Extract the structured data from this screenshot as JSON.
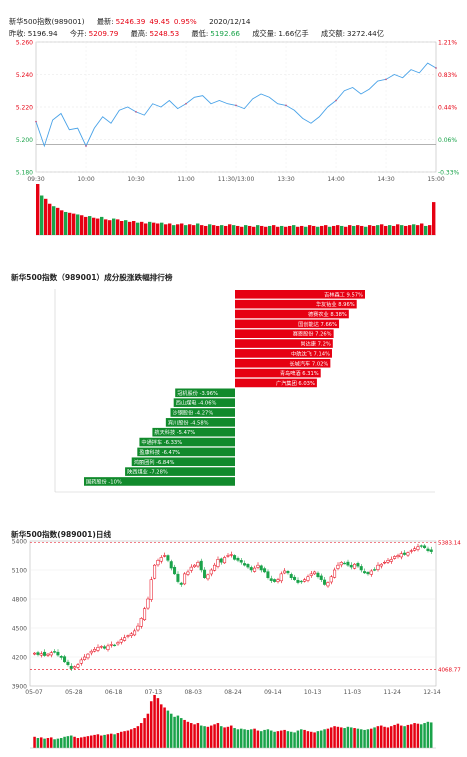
{
  "header": {
    "line1": {
      "name": "新华500指数(989001)",
      "latest_label": "最新:",
      "latest": "5246.39",
      "change": "49.45",
      "change_pct": "0.95%",
      "date": "2020/12/14"
    },
    "line2": {
      "prev_close_label": "昨收:",
      "prev_close": "5196.94",
      "open_label": "今开:",
      "open": "5209.79",
      "high_label": "最高:",
      "high": "5248.53",
      "low_label": "最低:",
      "low": "5192.66",
      "volume_label": "成交量:",
      "volume": "1.66亿手",
      "amount_label": "成交额:",
      "amount": "3272.44亿"
    }
  },
  "colors": {
    "up": "#e60012",
    "down": "#1aa34a",
    "line": "#4aa3e8",
    "rank_up": "#e60012",
    "rank_down": "#118a2c"
  },
  "chart_data": [
    {
      "type": "line",
      "name": "intraday",
      "ylim": [
        5180,
        5260
      ],
      "left_ticks": [
        "5.260",
        "5.240",
        "5.220",
        "5.200",
        "5.180"
      ],
      "right_ticks": [
        "1.21%",
        "0.83%",
        "0.44%",
        "0.06%",
        "-0.33%"
      ],
      "x_ticks": [
        "09:30",
        "10:00",
        "10:30",
        "11:00",
        "11:30/13:00",
        "13:30",
        "14:00",
        "14:30",
        "15:00"
      ],
      "prev_close": 5196.94,
      "x": [
        0,
        5,
        10,
        15,
        20,
        25,
        30,
        35,
        40,
        45,
        50,
        55,
        60,
        65,
        70,
        75,
        80,
        85,
        90,
        95,
        100,
        105,
        110,
        115,
        120,
        125,
        130,
        135,
        140,
        145,
        150,
        155,
        160,
        165,
        170,
        175,
        180,
        185,
        190,
        195,
        200,
        205,
        210,
        215,
        220,
        225,
        230,
        235,
        240
      ],
      "values": [
        5211,
        5196,
        5212,
        5216,
        5206,
        5207,
        5196,
        5207,
        5214,
        5210,
        5218,
        5220,
        5217,
        5215,
        5222,
        5220,
        5224,
        5219,
        5222,
        5226,
        5227,
        5222,
        5224,
        5222,
        5221,
        5219,
        5225,
        5228,
        5226,
        5222,
        5221,
        5218,
        5213,
        5210,
        5214,
        5220,
        5224,
        5230,
        5232,
        5228,
        5231,
        5236,
        5237,
        5240,
        5238,
        5243,
        5241,
        5247,
        5244
      ]
    },
    {
      "type": "bar",
      "name": "intraday-volume",
      "values": [
        62,
        48,
        44,
        38,
        35,
        33,
        30,
        28,
        27,
        26,
        25,
        24,
        22,
        23,
        21,
        20,
        22,
        19,
        18,
        20,
        19,
        17,
        18,
        16,
        17,
        15,
        16,
        14,
        16,
        15,
        14,
        15,
        13,
        14,
        12,
        13,
        14,
        12,
        13,
        12,
        14,
        12,
        11,
        13,
        12,
        11,
        12,
        11,
        13,
        12,
        11,
        10,
        12,
        11,
        10,
        12,
        11,
        10,
        11,
        12,
        10,
        11,
        10,
        11,
        12,
        10,
        11,
        10,
        12,
        11,
        10,
        11,
        12,
        10,
        11,
        12,
        11,
        10,
        12,
        11,
        12,
        11,
        10,
        12,
        11,
        12,
        13,
        11,
        12,
        11,
        13,
        12,
        11,
        12,
        13,
        12,
        14,
        11,
        12,
        40
      ]
    },
    {
      "type": "bar",
      "name": "ranking",
      "title": "新华500指数（989001）成分股涨跌幅排行榜",
      "categories": [
        "吉林森工",
        "华友钴业",
        "德赛农业",
        "国创能达",
        "赛恩股份",
        "尚达康",
        "中航沈飞",
        "长城汽车",
        "青岛啤酒",
        "广汽集团",
        "冠机股份",
        "西山煤电",
        "沙钢股份",
        "宾川股份",
        "航天科技",
        "中通拌车",
        "盈康科技",
        "鸿丽团列",
        "陕西煤业",
        "国药股份"
      ],
      "values": [
        9.57,
        8.96,
        8.38,
        7.66,
        7.26,
        7.2,
        7.14,
        7.02,
        6.31,
        6.03,
        -3.96,
        -4.06,
        -4.27,
        -4.58,
        -5.47,
        -6.33,
        -6.47,
        -6.84,
        -7.28,
        -10
      ]
    },
    {
      "type": "bar",
      "name": "daily-kline",
      "title": "新华500指数(989001)日线",
      "ylim": [
        3900,
        5400
      ],
      "y_ticks": [
        "5400",
        "5100",
        "4800",
        "4500",
        "4200",
        "3900"
      ],
      "x_ticks": [
        "05-07",
        "05-28",
        "06-18",
        "07-13",
        "08-03",
        "08-24",
        "09-14",
        "10-13",
        "11-03",
        "11-24",
        "12-14"
      ],
      "max_label": "5383.14",
      "min_label": "4068.77",
      "max": 5383.14,
      "min": 4068.77,
      "close": [
        4240,
        4225,
        4235,
        4215,
        4230,
        4245,
        4250,
        4220,
        4195,
        4150,
        4120,
        4080,
        4100,
        4120,
        4170,
        4200,
        4230,
        4260,
        4280,
        4300,
        4310,
        4290,
        4315,
        4330,
        4320,
        4350,
        4380,
        4400,
        4420,
        4440,
        4470,
        4520,
        4600,
        4700,
        4800,
        5000,
        5150,
        5200,
        5230,
        5250,
        5200,
        5120,
        5060,
        4980,
        4950,
        5060,
        5080,
        5130,
        5150,
        5180,
        5100,
        5020,
        5050,
        5100,
        5150,
        5210,
        5180,
        5230,
        5250,
        5260,
        5210,
        5200,
        5180,
        5150,
        5130,
        5100,
        5120,
        5150,
        5100,
        5080,
        5020,
        4990,
        4980,
        5000,
        5060,
        5090,
        5070,
        5020,
        5000,
        4970,
        4980,
        5000,
        5030,
        5060,
        5080,
        5030,
        5000,
        4950,
        4970,
        5030,
        5100,
        5150,
        5180,
        5170,
        5150,
        5130,
        5160,
        5140,
        5100,
        5070,
        5060,
        5090,
        5100,
        5150,
        5160,
        5180,
        5200,
        5210,
        5240,
        5250,
        5270,
        5260,
        5280,
        5300,
        5320,
        5340,
        5350,
        5330,
        5300,
        5290
      ],
      "volume": [
        18,
        16,
        17,
        15,
        16,
        17,
        14,
        15,
        16,
        18,
        19,
        20,
        18,
        16,
        17,
        18,
        19,
        20,
        21,
        22,
        20,
        21,
        22,
        23,
        22,
        24,
        26,
        27,
        28,
        30,
        32,
        35,
        40,
        48,
        55,
        75,
        85,
        80,
        70,
        65,
        60,
        55,
        50,
        52,
        48,
        45,
        42,
        40,
        38,
        40,
        36,
        35,
        34,
        36,
        38,
        40,
        35,
        33,
        34,
        36,
        32,
        30,
        31,
        30,
        29,
        30,
        31,
        28,
        27,
        29,
        30,
        28,
        26,
        27,
        28,
        29,
        27,
        26,
        25,
        28,
        30,
        29,
        27,
        26,
        25,
        27,
        28,
        30,
        31,
        33,
        35,
        34,
        33,
        32,
        34,
        33,
        32,
        31,
        30,
        29,
        30,
        31,
        33,
        35,
        36,
        34,
        33,
        35,
        37,
        39,
        36,
        35,
        37,
        38,
        40,
        39,
        38,
        40,
        42,
        41
      ]
    }
  ]
}
